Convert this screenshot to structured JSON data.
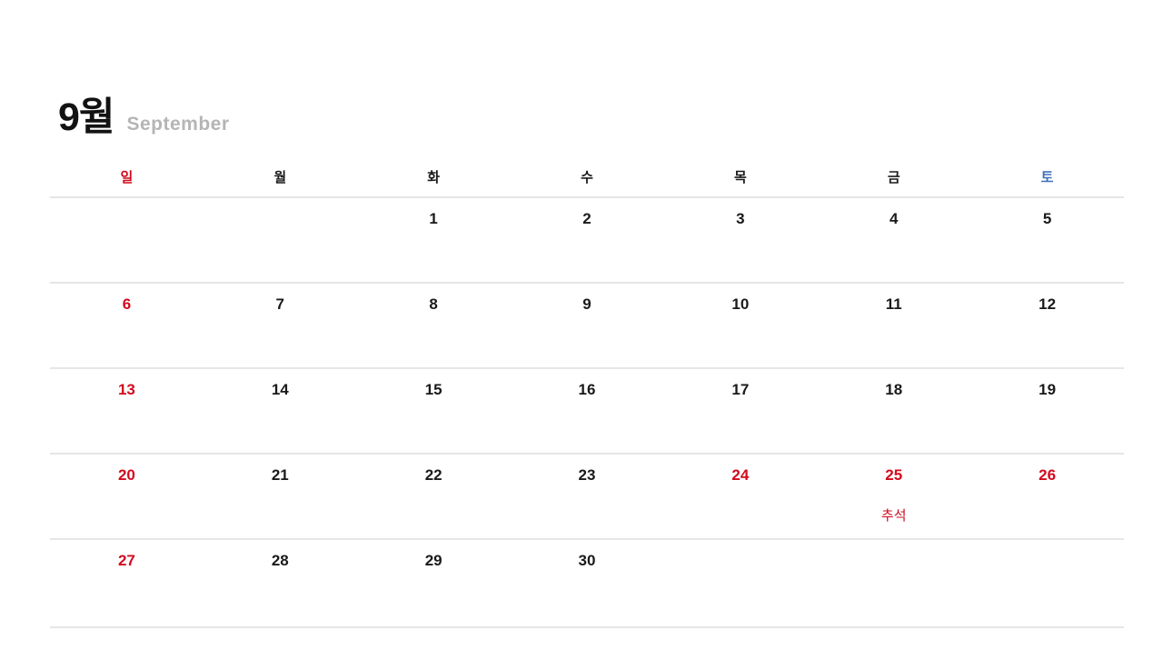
{
  "page": {
    "title_kr": "9월",
    "title_en": "September"
  },
  "colors": {
    "sunday_holiday_red": "#d20a1e",
    "saturday_blue": "#4170b5",
    "text_black": "#1a1a1a",
    "subtitle_gray": "#b5b5b5",
    "grid_border": "#e6e6e6",
    "background": "#ffffff"
  },
  "calendar": {
    "weekday_headers": [
      {
        "label": "일",
        "tone": "sunday"
      },
      {
        "label": "월",
        "tone": "weekday"
      },
      {
        "label": "화",
        "tone": "weekday"
      },
      {
        "label": "수",
        "tone": "weekday"
      },
      {
        "label": "목",
        "tone": "weekday"
      },
      {
        "label": "금",
        "tone": "weekday"
      },
      {
        "label": "토",
        "tone": "saturday"
      }
    ],
    "weeks": [
      {
        "cells": [
          {
            "date": "",
            "tone": "",
            "label": ""
          },
          {
            "date": "",
            "tone": "",
            "label": ""
          },
          {
            "date": "1",
            "tone": "normal",
            "label": ""
          },
          {
            "date": "2",
            "tone": "normal",
            "label": ""
          },
          {
            "date": "3",
            "tone": "normal",
            "label": ""
          },
          {
            "date": "4",
            "tone": "normal",
            "label": ""
          },
          {
            "date": "5",
            "tone": "normal",
            "label": ""
          }
        ]
      },
      {
        "cells": [
          {
            "date": "6",
            "tone": "sunday",
            "label": ""
          },
          {
            "date": "7",
            "tone": "normal",
            "label": ""
          },
          {
            "date": "8",
            "tone": "normal",
            "label": ""
          },
          {
            "date": "9",
            "tone": "normal",
            "label": ""
          },
          {
            "date": "10",
            "tone": "normal",
            "label": ""
          },
          {
            "date": "11",
            "tone": "normal",
            "label": ""
          },
          {
            "date": "12",
            "tone": "normal",
            "label": ""
          }
        ]
      },
      {
        "cells": [
          {
            "date": "13",
            "tone": "sunday",
            "label": ""
          },
          {
            "date": "14",
            "tone": "normal",
            "label": ""
          },
          {
            "date": "15",
            "tone": "normal",
            "label": ""
          },
          {
            "date": "16",
            "tone": "normal",
            "label": ""
          },
          {
            "date": "17",
            "tone": "normal",
            "label": ""
          },
          {
            "date": "18",
            "tone": "normal",
            "label": ""
          },
          {
            "date": "19",
            "tone": "normal",
            "label": ""
          }
        ]
      },
      {
        "cells": [
          {
            "date": "20",
            "tone": "sunday",
            "label": ""
          },
          {
            "date": "21",
            "tone": "normal",
            "label": ""
          },
          {
            "date": "22",
            "tone": "normal",
            "label": ""
          },
          {
            "date": "23",
            "tone": "normal",
            "label": ""
          },
          {
            "date": "24",
            "tone": "holiday",
            "label": ""
          },
          {
            "date": "25",
            "tone": "holiday",
            "label": "추석"
          },
          {
            "date": "26",
            "tone": "holiday",
            "label": ""
          }
        ]
      },
      {
        "cells": [
          {
            "date": "27",
            "tone": "sunday",
            "label": ""
          },
          {
            "date": "28",
            "tone": "normal",
            "label": ""
          },
          {
            "date": "29",
            "tone": "normal",
            "label": ""
          },
          {
            "date": "30",
            "tone": "normal",
            "label": ""
          },
          {
            "date": "",
            "tone": "",
            "label": ""
          },
          {
            "date": "",
            "tone": "",
            "label": ""
          },
          {
            "date": "",
            "tone": "",
            "label": ""
          }
        ]
      }
    ]
  }
}
